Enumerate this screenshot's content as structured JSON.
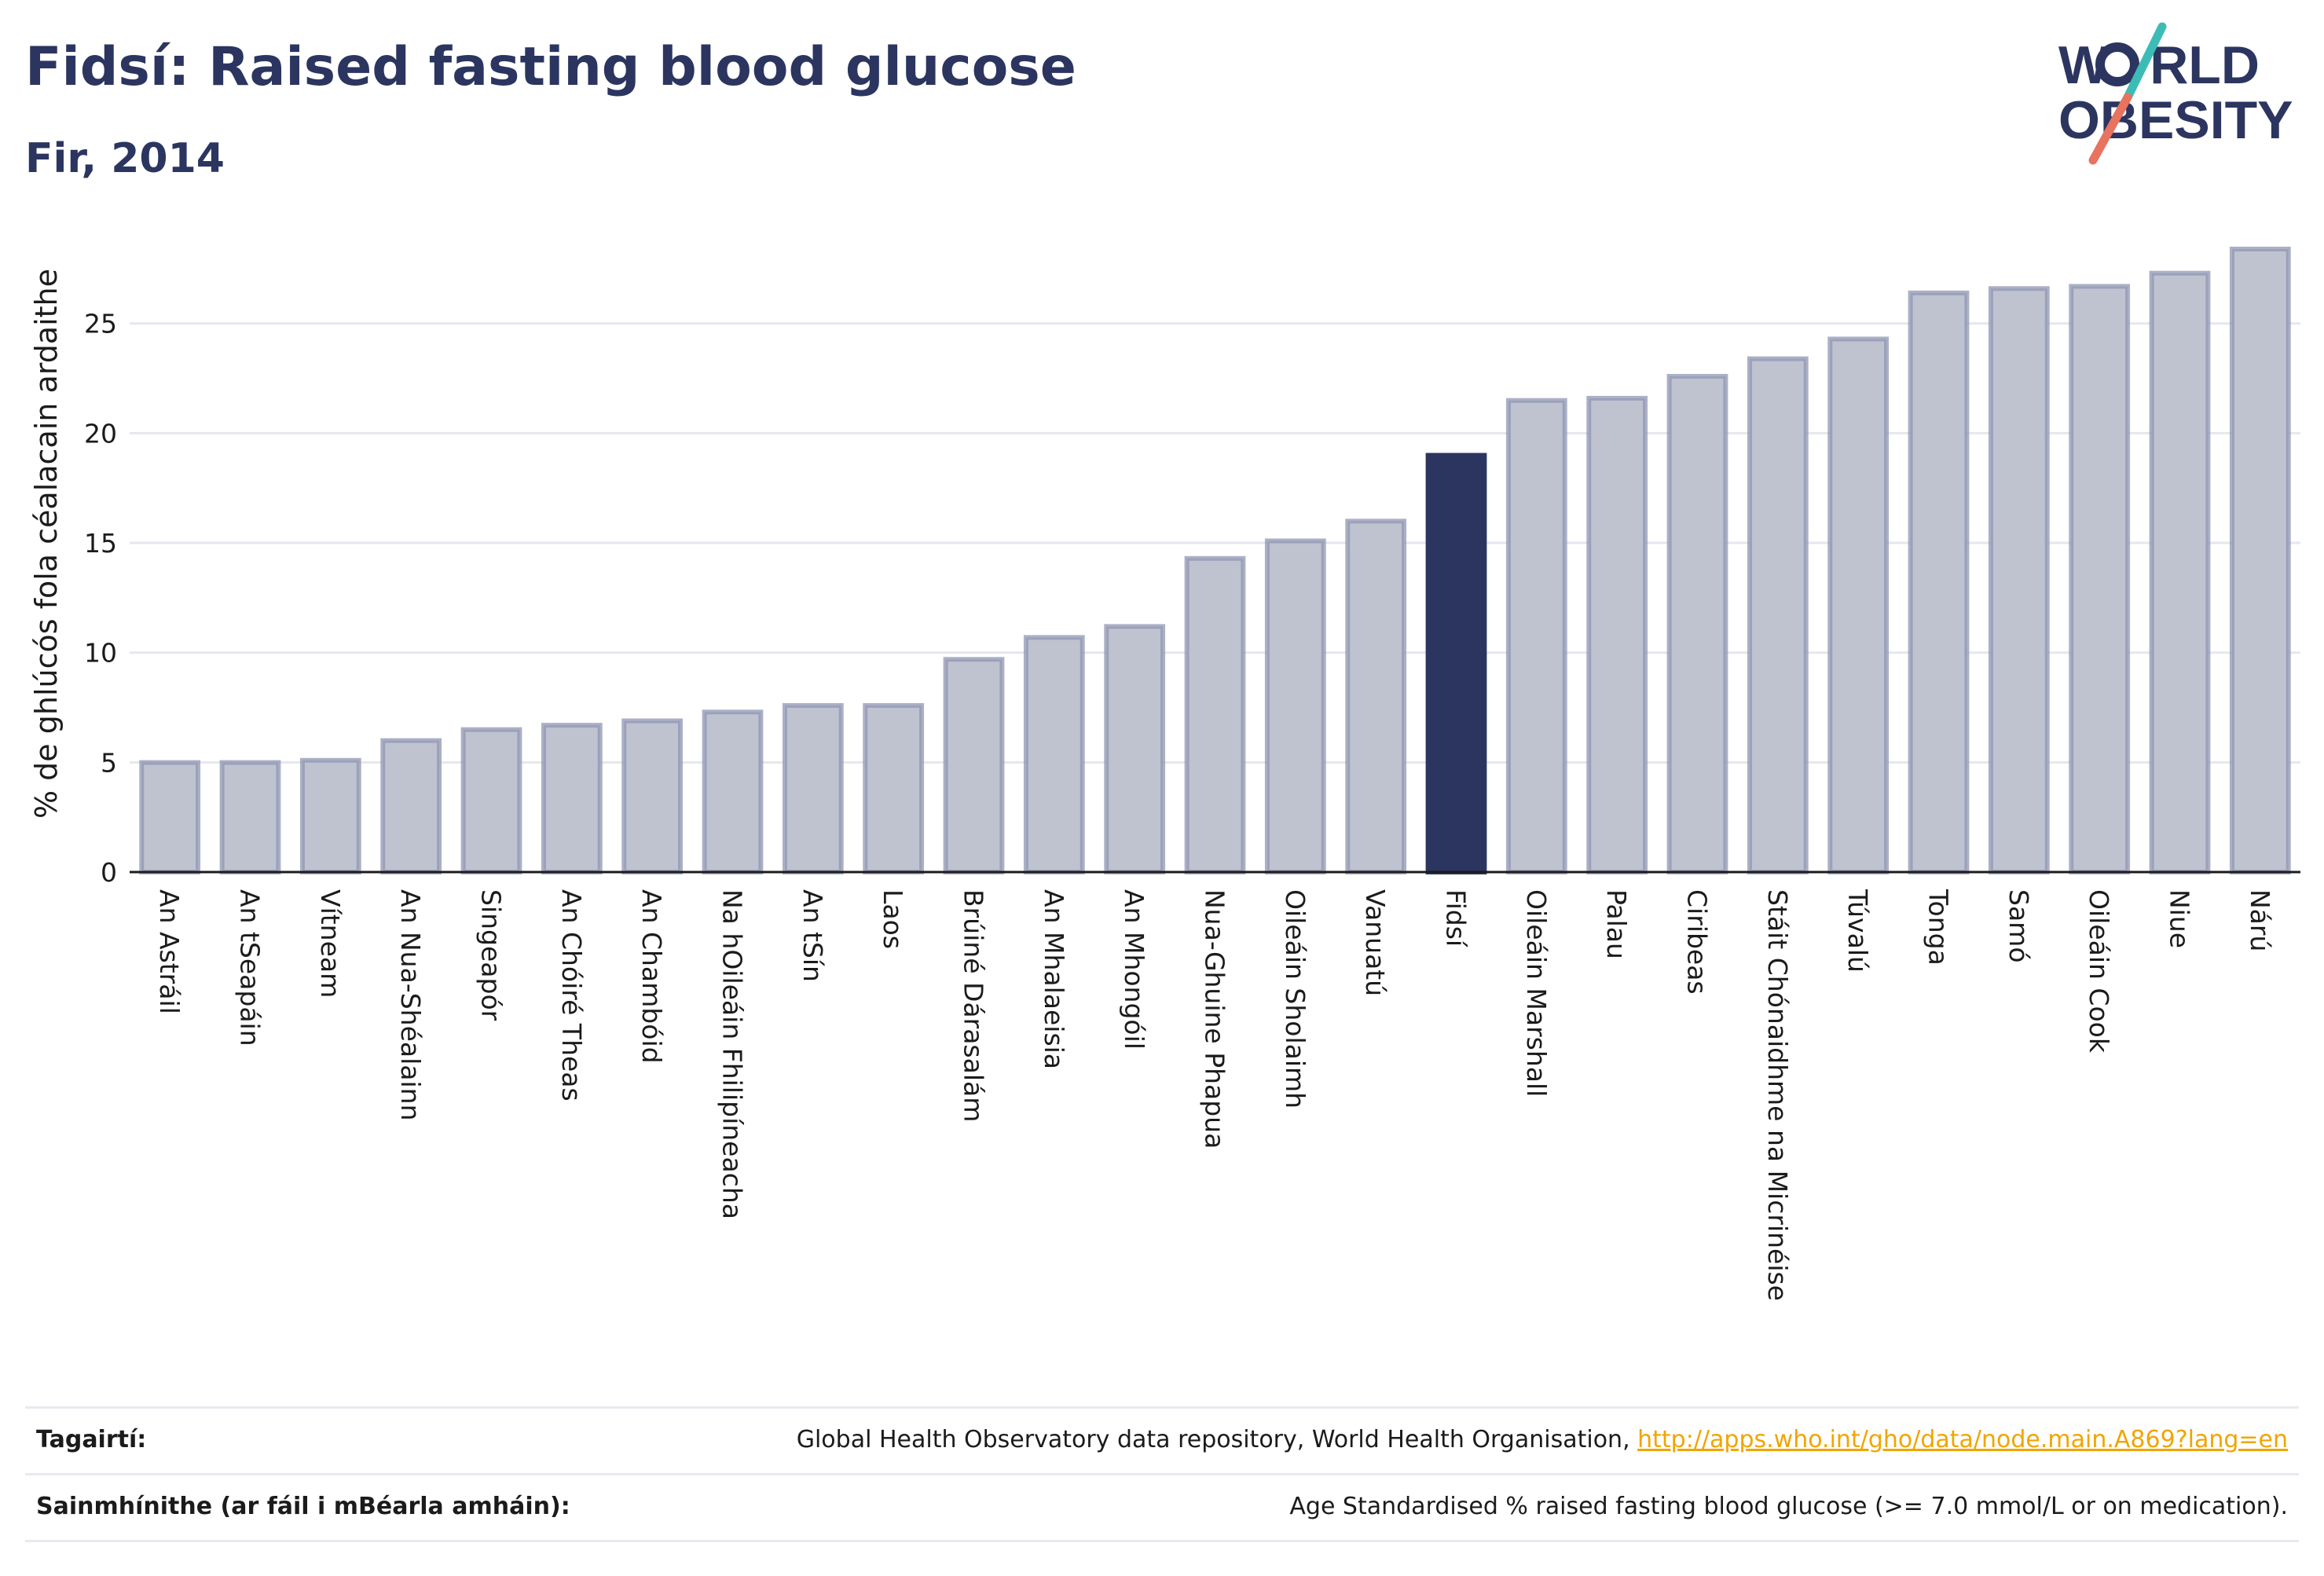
{
  "header": {
    "title": "Fidsí: Raised fasting blood glucose",
    "subtitle": "Fir, 2014"
  },
  "logo": {
    "line1_pre": "W",
    "line1_post": "RLD",
    "line2": "OBESITY",
    "text_color": "#2b3560",
    "slash_top_color": "#3dbcb6",
    "slash_bottom_color": "#e8735f"
  },
  "colors": {
    "bar_fill": "#bfc3d0",
    "bar_stroke": "#8f96b3",
    "highlight": "#2b3560",
    "grid": "#e6e7ee",
    "axis": "#1b1b1b",
    "link": "#f0a500"
  },
  "chart_data": {
    "type": "bar",
    "ylabel": "% de ghlúcós fola céalacain ardaithe",
    "ylim": [
      0,
      29
    ],
    "yticks": [
      0,
      5,
      10,
      15,
      20,
      25
    ],
    "grid": true,
    "highlight": "Fidsí",
    "categories": [
      "An Astráil",
      "An tSeapáin",
      "Vítneam",
      "An Nua-Shéalainn",
      "Singeapór",
      "An Chóiré Theas",
      "An Chambóid",
      "Na hOileáin Fhilipíneacha",
      "An tSín",
      "Laos",
      "Brúiné Dárasalám",
      "An Mhalaeisia",
      "An Mhongóil",
      "Nua-Ghuine Phapua",
      "Oileáin Sholaimh",
      "Vanuatú",
      "Fidsí",
      "Oileáin Marshall",
      "Palau",
      "Ciribeas",
      "Stáit Chónaidhme na Micrinéise",
      "Túvalú",
      "Tonga",
      "Samó",
      "Oileáin Cook",
      "Niue",
      "Nárú"
    ],
    "values": [
      5.1,
      5.1,
      5.2,
      6.1,
      6.6,
      6.8,
      7.0,
      7.4,
      7.7,
      7.7,
      9.8,
      10.8,
      11.3,
      14.4,
      15.2,
      16.1,
      19.1,
      21.6,
      21.7,
      22.7,
      23.5,
      24.4,
      26.5,
      26.7,
      26.8,
      27.4,
      28.5
    ]
  },
  "references": {
    "sources_label": "Tagairtí:",
    "sources_text": "Global Health Observatory data repository, World Health Organisation, ",
    "sources_link": "http://apps.who.int/gho/data/node.main.A869?lang=en",
    "definitions_label": "Sainmhínithe (ar fáil i mBéarla amháin):",
    "definitions_text": "Age Standardised % raised fasting blood glucose (>= 7.0 mmol/L or on medication)."
  }
}
